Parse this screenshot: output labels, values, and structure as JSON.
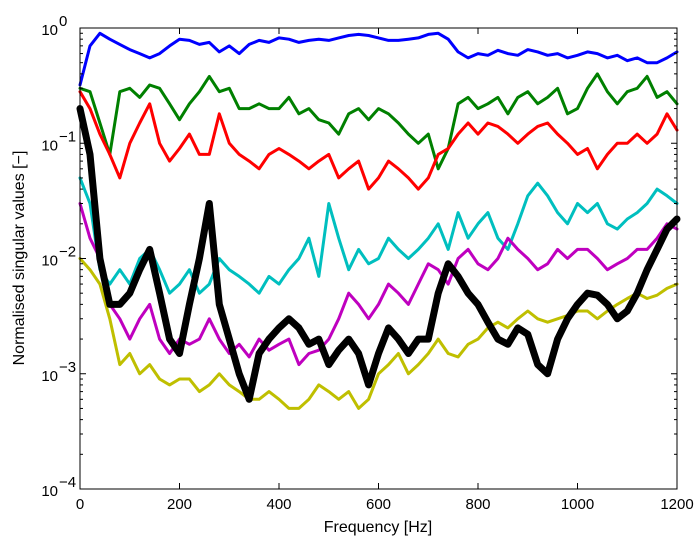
{
  "chart_data": {
    "type": "line",
    "title": "",
    "xlabel": "Frequency [Hz]",
    "ylabel": "Normalised singular values [−]",
    "xlim": [
      0,
      1200
    ],
    "ylim": [
      0.0001,
      1
    ],
    "yscale": "log",
    "grid": false,
    "x_ticks": [
      0,
      200,
      400,
      600,
      800,
      1000,
      1200
    ],
    "x_tick_labels": [
      "0",
      "200",
      "400",
      "600",
      "800",
      "1000",
      "1200"
    ],
    "y_ticks": [
      1,
      0.1,
      0.01,
      0.001,
      0.0001
    ],
    "y_tick_labels": [
      {
        "base": "10",
        "exp": "0"
      },
      {
        "base": "10",
        "exp": "−1"
      },
      {
        "base": "10",
        "exp": "−2"
      },
      {
        "base": "10",
        "exp": "−3"
      },
      {
        "base": "10",
        "exp": "−4"
      }
    ],
    "x": [
      0,
      20,
      40,
      60,
      80,
      100,
      120,
      140,
      160,
      180,
      200,
      220,
      240,
      260,
      280,
      300,
      320,
      340,
      360,
      380,
      400,
      420,
      440,
      460,
      480,
      500,
      520,
      540,
      560,
      580,
      600,
      620,
      640,
      660,
      680,
      700,
      720,
      740,
      760,
      780,
      800,
      820,
      840,
      860,
      880,
      900,
      920,
      940,
      960,
      980,
      1000,
      1020,
      1040,
      1060,
      1080,
      1100,
      1120,
      1140,
      1160,
      1180,
      1200
    ],
    "series": [
      {
        "color": "#0000ff",
        "width": 3,
        "values": [
          0.32,
          0.7,
          0.9,
          0.8,
          0.72,
          0.65,
          0.6,
          0.55,
          0.6,
          0.7,
          0.8,
          0.78,
          0.72,
          0.75,
          0.62,
          0.7,
          0.6,
          0.72,
          0.78,
          0.75,
          0.82,
          0.8,
          0.75,
          0.78,
          0.8,
          0.78,
          0.82,
          0.86,
          0.88,
          0.86,
          0.82,
          0.78,
          0.78,
          0.8,
          0.82,
          0.88,
          0.9,
          0.8,
          0.62,
          0.55,
          0.6,
          0.58,
          0.64,
          0.6,
          0.58,
          0.65,
          0.62,
          0.58,
          0.6,
          0.55,
          0.58,
          0.62,
          0.6,
          0.55,
          0.58,
          0.52,
          0.55,
          0.5,
          0.5,
          0.55,
          0.62
        ]
      },
      {
        "color": "#008000",
        "width": 3,
        "values": [
          0.3,
          0.28,
          0.15,
          0.08,
          0.28,
          0.3,
          0.25,
          0.32,
          0.3,
          0.22,
          0.16,
          0.22,
          0.28,
          0.38,
          0.28,
          0.3,
          0.2,
          0.2,
          0.22,
          0.2,
          0.2,
          0.25,
          0.18,
          0.2,
          0.16,
          0.15,
          0.12,
          0.18,
          0.2,
          0.16,
          0.2,
          0.18,
          0.15,
          0.12,
          0.1,
          0.12,
          0.06,
          0.09,
          0.22,
          0.25,
          0.2,
          0.22,
          0.25,
          0.18,
          0.25,
          0.28,
          0.22,
          0.25,
          0.3,
          0.18,
          0.2,
          0.3,
          0.4,
          0.28,
          0.22,
          0.28,
          0.3,
          0.38,
          0.25,
          0.28,
          0.22
        ]
      },
      {
        "color": "#ff0000",
        "width": 3,
        "values": [
          0.28,
          0.2,
          0.12,
          0.08,
          0.05,
          0.1,
          0.15,
          0.22,
          0.1,
          0.07,
          0.09,
          0.12,
          0.08,
          0.08,
          0.18,
          0.1,
          0.08,
          0.07,
          0.06,
          0.08,
          0.09,
          0.08,
          0.07,
          0.06,
          0.07,
          0.08,
          0.05,
          0.06,
          0.07,
          0.04,
          0.05,
          0.07,
          0.06,
          0.05,
          0.04,
          0.05,
          0.08,
          0.09,
          0.12,
          0.15,
          0.12,
          0.15,
          0.14,
          0.12,
          0.1,
          0.12,
          0.14,
          0.15,
          0.12,
          0.1,
          0.08,
          0.09,
          0.06,
          0.08,
          0.1,
          0.1,
          0.12,
          0.1,
          0.12,
          0.18,
          0.13
        ]
      },
      {
        "color": "#00bfbf",
        "width": 3,
        "values": [
          0.05,
          0.03,
          0.008,
          0.006,
          0.008,
          0.006,
          0.01,
          0.012,
          0.008,
          0.005,
          0.006,
          0.008,
          0.005,
          0.006,
          0.01,
          0.008,
          0.007,
          0.006,
          0.005,
          0.007,
          0.006,
          0.008,
          0.01,
          0.015,
          0.007,
          0.03,
          0.015,
          0.008,
          0.012,
          0.009,
          0.01,
          0.015,
          0.012,
          0.01,
          0.012,
          0.015,
          0.02,
          0.012,
          0.025,
          0.015,
          0.02,
          0.025,
          0.015,
          0.012,
          0.02,
          0.035,
          0.045,
          0.035,
          0.025,
          0.02,
          0.03,
          0.025,
          0.03,
          0.02,
          0.018,
          0.022,
          0.025,
          0.03,
          0.04,
          0.035,
          0.03
        ]
      },
      {
        "color": "#bf00bf",
        "width": 3,
        "values": [
          0.03,
          0.015,
          0.01,
          0.004,
          0.003,
          0.002,
          0.003,
          0.004,
          0.002,
          0.0015,
          0.002,
          0.0018,
          0.002,
          0.003,
          0.002,
          0.0015,
          0.0018,
          0.0014,
          0.002,
          0.0016,
          0.0018,
          0.002,
          0.0012,
          0.0015,
          0.0016,
          0.002,
          0.003,
          0.005,
          0.004,
          0.003,
          0.004,
          0.006,
          0.005,
          0.004,
          0.006,
          0.009,
          0.008,
          0.006,
          0.01,
          0.012,
          0.009,
          0.008,
          0.01,
          0.015,
          0.012,
          0.01,
          0.008,
          0.009,
          0.012,
          0.01,
          0.012,
          0.012,
          0.01,
          0.008,
          0.009,
          0.01,
          0.012,
          0.012,
          0.015,
          0.02,
          0.018
        ]
      },
      {
        "color": "#bfbf00",
        "width": 3,
        "values": [
          0.01,
          0.008,
          0.006,
          0.003,
          0.0012,
          0.0015,
          0.001,
          0.0012,
          0.0009,
          0.0008,
          0.0009,
          0.0009,
          0.0007,
          0.0008,
          0.001,
          0.0008,
          0.0007,
          0.0006,
          0.0006,
          0.0007,
          0.0006,
          0.0005,
          0.0005,
          0.0006,
          0.0008,
          0.0007,
          0.0006,
          0.0007,
          0.0005,
          0.0006,
          0.001,
          0.0012,
          0.0015,
          0.001,
          0.0012,
          0.0015,
          0.002,
          0.0015,
          0.0014,
          0.0018,
          0.002,
          0.0025,
          0.0028,
          0.0025,
          0.003,
          0.0035,
          0.003,
          0.0028,
          0.003,
          0.0032,
          0.0035,
          0.0035,
          0.003,
          0.0035,
          0.004,
          0.0045,
          0.005,
          0.0045,
          0.0048,
          0.0055,
          0.006
        ]
      },
      {
        "color": "#000000",
        "width": 7,
        "values": [
          0.2,
          0.08,
          0.01,
          0.004,
          0.004,
          0.005,
          0.008,
          0.012,
          0.005,
          0.002,
          0.0015,
          0.004,
          0.01,
          0.03,
          0.004,
          0.002,
          0.001,
          0.0006,
          0.0015,
          0.002,
          0.0025,
          0.003,
          0.0025,
          0.0018,
          0.002,
          0.0012,
          0.0016,
          0.002,
          0.0015,
          0.0008,
          0.0015,
          0.0025,
          0.002,
          0.0015,
          0.002,
          0.002,
          0.005,
          0.009,
          0.007,
          0.005,
          0.004,
          0.0028,
          0.002,
          0.0018,
          0.0025,
          0.0022,
          0.0012,
          0.001,
          0.002,
          0.003,
          0.004,
          0.005,
          0.0048,
          0.004,
          0.003,
          0.0035,
          0.005,
          0.008,
          0.012,
          0.018,
          0.022
        ]
      }
    ]
  }
}
